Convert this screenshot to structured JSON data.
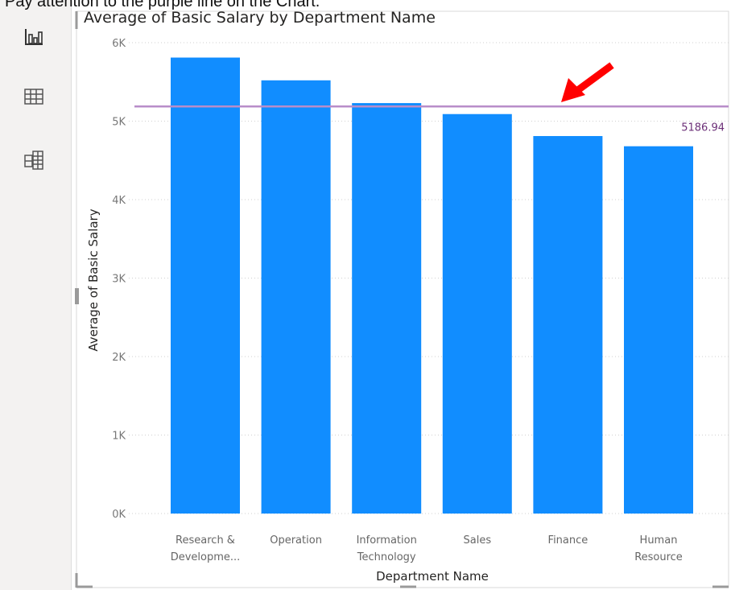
{
  "caption": "Pay attention to the purple line on the Chart.",
  "visual_pane": {
    "icons": [
      "bar-chart-icon",
      "table-icon",
      "matrix-icon"
    ]
  },
  "colors": {
    "bar": "#118DFF",
    "reference_line": "#B88DC9",
    "reference_label": "#6B2F77",
    "arrow": "#FF0000",
    "gridline": "#CFCFCF"
  },
  "chart_data": {
    "type": "bar",
    "title": "Average of Basic Salary by Department Name",
    "xlabel": "Department Name",
    "ylabel": "Average of Basic Salary",
    "categories": [
      [
        "Research &",
        "Developme..."
      ],
      [
        "Operation"
      ],
      [
        "Information",
        "Technology"
      ],
      [
        "Sales"
      ],
      [
        "Finance"
      ],
      [
        "Human",
        "Resource"
      ]
    ],
    "values": [
      5810,
      5520,
      5230,
      5090,
      4810,
      4680
    ],
    "ylim": [
      0,
      6000
    ],
    "yticks": [
      0,
      1000,
      2000,
      3000,
      4000,
      5000,
      6000
    ],
    "ytick_labels": [
      "0K",
      "1K",
      "2K",
      "3K",
      "4K",
      "5K",
      "6K"
    ],
    "grid": true,
    "reference_line": {
      "value": 5186.94,
      "label": "5186.94"
    },
    "annotation": "arrow pointing at the reference line"
  }
}
